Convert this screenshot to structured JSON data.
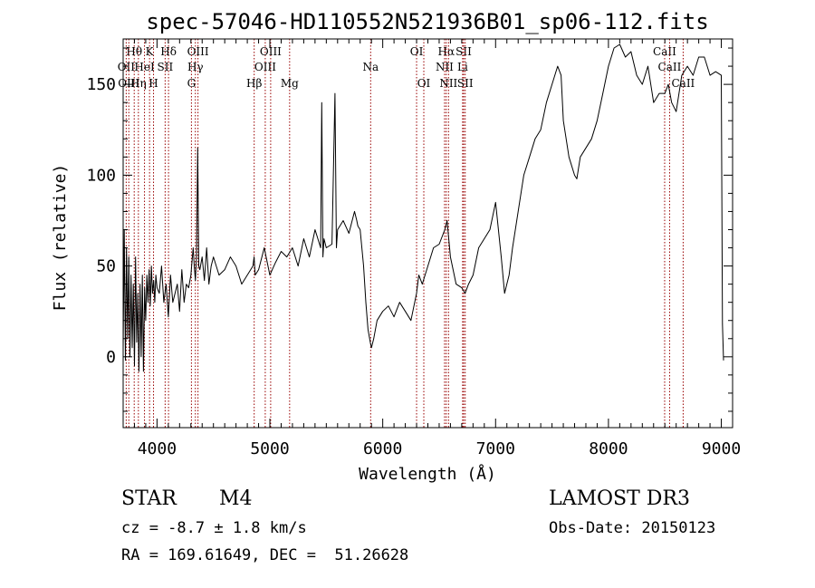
{
  "chart_data": {
    "type": "line",
    "title": "spec-57046-HD110552N521936B01_sp06-112.fits",
    "xlabel": "Wavelength (Å)",
    "ylabel": "Flux (relative)",
    "xlim": [
      3700,
      9100
    ],
    "ylim": [
      -39,
      175
    ],
    "xticks": [
      4000,
      5000,
      6000,
      7000,
      8000,
      9000
    ],
    "yticks": [
      0,
      50,
      100,
      150
    ],
    "series": [
      {
        "name": "spectrum",
        "color": "#000000",
        "x": [
          3700,
          3710,
          3720,
          3730,
          3740,
          3750,
          3760,
          3770,
          3780,
          3790,
          3800,
          3810,
          3820,
          3830,
          3840,
          3850,
          3860,
          3870,
          3880,
          3890,
          3900,
          3910,
          3920,
          3930,
          3940,
          3950,
          3960,
          3970,
          3980,
          3990,
          4000,
          4020,
          4040,
          4060,
          4080,
          4100,
          4120,
          4140,
          4160,
          4180,
          4200,
          4220,
          4240,
          4260,
          4280,
          4300,
          4320,
          4330,
          4340,
          4350,
          4360,
          4370,
          4380,
          4400,
          4420,
          4440,
          4460,
          4480,
          4500,
          4550,
          4600,
          4650,
          4700,
          4750,
          4800,
          4850,
          4860,
          4870,
          4900,
          4950,
          5000,
          5050,
          5100,
          5150,
          5200,
          5250,
          5300,
          5350,
          5400,
          5450,
          5460,
          5470,
          5480,
          5500,
          5550,
          5577,
          5590,
          5600,
          5650,
          5700,
          5750,
          5770,
          5780,
          5800,
          5830,
          5850,
          5870,
          5890,
          5900,
          5920,
          5950,
          6000,
          6050,
          6100,
          6150,
          6200,
          6250,
          6300,
          6320,
          6350,
          6400,
          6450,
          6500,
          6550,
          6570,
          6600,
          6650,
          6700,
          6730,
          6760,
          6800,
          6850,
          6900,
          6950,
          7000,
          7050,
          7080,
          7100,
          7120,
          7150,
          7200,
          7250,
          7300,
          7350,
          7400,
          7450,
          7500,
          7550,
          7580,
          7600,
          7650,
          7700,
          7720,
          7750,
          7800,
          7850,
          7900,
          7950,
          8000,
          8050,
          8100,
          8150,
          8200,
          8250,
          8300,
          8350,
          8400,
          8450,
          8500,
          8530,
          8560,
          8600,
          8650,
          8700,
          8750,
          8800,
          8850,
          8900,
          8950,
          9000,
          9010,
          9020
        ],
        "values": [
          5,
          70,
          -2,
          60,
          10,
          55,
          0,
          45,
          5,
          40,
          -5,
          55,
          8,
          35,
          -8,
          40,
          0,
          45,
          -8,
          38,
          20,
          45,
          30,
          48,
          28,
          50,
          35,
          42,
          30,
          45,
          38,
          35,
          50,
          30,
          40,
          22,
          45,
          30,
          35,
          40,
          25,
          48,
          30,
          40,
          38,
          45,
          60,
          50,
          42,
          55,
          115,
          50,
          48,
          55,
          42,
          60,
          40,
          50,
          55,
          45,
          48,
          55,
          50,
          40,
          45,
          50,
          55,
          45,
          48,
          60,
          45,
          52,
          58,
          55,
          60,
          50,
          65,
          55,
          70,
          60,
          140,
          55,
          65,
          60,
          62,
          145,
          60,
          70,
          75,
          68,
          80,
          75,
          72,
          70,
          50,
          30,
          15,
          8,
          5,
          10,
          20,
          25,
          28,
          22,
          30,
          25,
          20,
          35,
          45,
          40,
          50,
          60,
          62,
          70,
          75,
          55,
          40,
          38,
          35,
          40,
          45,
          60,
          65,
          70,
          85,
          55,
          35,
          40,
          45,
          60,
          80,
          100,
          110,
          120,
          125,
          140,
          150,
          160,
          155,
          130,
          110,
          100,
          98,
          110,
          115,
          120,
          130,
          145,
          160,
          170,
          172,
          165,
          168,
          155,
          150,
          160,
          140,
          145,
          145,
          150,
          140,
          135,
          155,
          160,
          155,
          165,
          165,
          155,
          157,
          155,
          18,
          -2
        ]
      }
    ],
    "spectral_lines": [
      {
        "label": "Hθ",
        "wl": 3798,
        "row": 0
      },
      {
        "label": "OII",
        "wl": 3727,
        "row": 1
      },
      {
        "label": "OIII",
        "wl": 3750,
        "row": 2
      },
      {
        "label": "Hη",
        "wl": 3835,
        "row": 2
      },
      {
        "label": "HeI",
        "wl": 3889,
        "row": 1
      },
      {
        "label": "K",
        "wl": 3934,
        "row": 0
      },
      {
        "label": "H",
        "wl": 3969,
        "row": 2
      },
      {
        "label": "SII",
        "wl": 4072,
        "row": 1
      },
      {
        "label": "Hδ",
        "wl": 4102,
        "row": 0
      },
      {
        "label": "OIII",
        "wl": 4363,
        "row": 0
      },
      {
        "label": "Hγ",
        "wl": 4340,
        "row": 1
      },
      {
        "label": "G",
        "wl": 4305,
        "row": 2
      },
      {
        "label": "Hβ",
        "wl": 4861,
        "row": 2
      },
      {
        "label": "OIII",
        "wl": 4959,
        "row": 1
      },
      {
        "label": "OIII",
        "wl": 5007,
        "row": 0
      },
      {
        "label": "Mg",
        "wl": 5175,
        "row": 2
      },
      {
        "label": "Na",
        "wl": 5893,
        "row": 1
      },
      {
        "label": "OI",
        "wl": 6300,
        "row": 0
      },
      {
        "label": "OI",
        "wl": 6364,
        "row": 2
      },
      {
        "label": "Hα",
        "wl": 6563,
        "row": 0
      },
      {
        "label": "NII",
        "wl": 6548,
        "row": 1
      },
      {
        "label": "NII",
        "wl": 6583,
        "row": 2
      },
      {
        "label": "SII",
        "wl": 6717,
        "row": 0
      },
      {
        "label": "Li",
        "wl": 6708,
        "row": 1
      },
      {
        "label": "SII",
        "wl": 6731,
        "row": 2
      },
      {
        "label": "CaII",
        "wl": 8498,
        "row": 0
      },
      {
        "label": "CaII",
        "wl": 8542,
        "row": 1
      },
      {
        "label": "CaII",
        "wl": 8662,
        "row": 2
      }
    ],
    "line_color": "#990000"
  },
  "info": {
    "object_class": "STAR",
    "subclass": "M4",
    "survey": "LAMOST DR3",
    "redshift": "cz = -8.7 ± 1.8 km/s",
    "obs_date": "Obs-Date: 20150123",
    "coords": "RA = 169.61649, DEC =  51.26628"
  }
}
